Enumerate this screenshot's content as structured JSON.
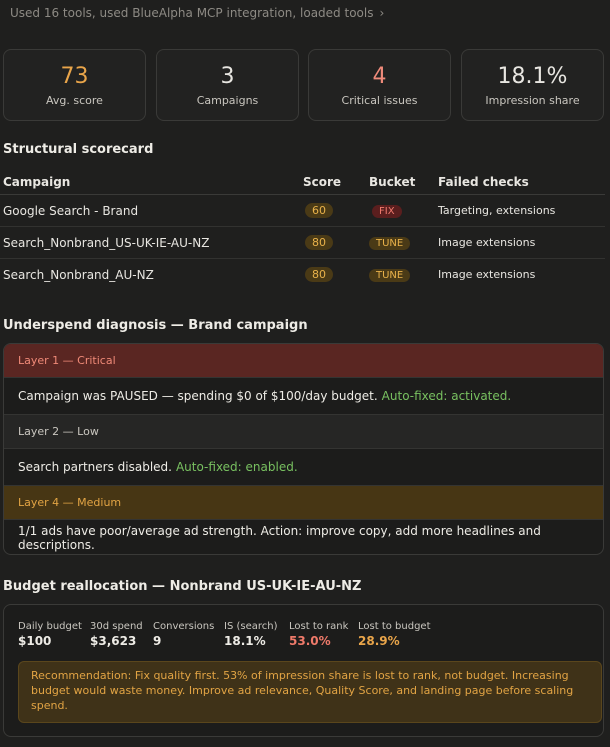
{
  "tools_summary": "Used 16 tools, used BlueAlpha MCP integration, loaded tools",
  "stats": [
    {
      "value": "73",
      "label": "Avg. score",
      "color": "#e9a54a"
    },
    {
      "value": "3",
      "label": "Campaigns",
      "color": "#f2f0ea"
    },
    {
      "value": "4",
      "label": "Critical issues",
      "color": "#ef8a7a"
    },
    {
      "value": "18.1%",
      "label": "Impression share",
      "color": "#f2f0ea"
    }
  ],
  "scorecard": {
    "title": "Structural scorecard",
    "headers": [
      "Campaign",
      "Score",
      "Bucket",
      "Failed checks"
    ],
    "rows": [
      {
        "campaign": "Google Search - Brand",
        "score": "60",
        "bucket": "FIX",
        "failed": "Targeting, extensions"
      },
      {
        "campaign": "Search_Nonbrand_US-UK-IE-AU-NZ",
        "score": "80",
        "bucket": "TUNE",
        "failed": "Image extensions"
      },
      {
        "campaign": "Search_Nonbrand_AU-NZ",
        "score": "80",
        "bucket": "TUNE",
        "failed": "Image extensions"
      }
    ]
  },
  "diagnosis": {
    "title": "Underspend diagnosis — Brand campaign",
    "layers": [
      {
        "head": "Layer 1 — Critical",
        "body": "Campaign was PAUSED — spending $0 of $100/day budget.",
        "fix": "Auto-fixed: activated."
      },
      {
        "head": "Layer 2 — Low",
        "body": "Search partners disabled.",
        "fix": "Auto-fixed: enabled."
      },
      {
        "head": "Layer 4 — Medium",
        "body": "1/1 ads have poor/average ad strength. Action: improve copy, add more headlines and descriptions.",
        "fix": ""
      }
    ]
  },
  "budget": {
    "title": "Budget reallocation — Nonbrand US-UK-IE-AU-NZ",
    "metrics": [
      {
        "label": "Daily budget",
        "value": "$100"
      },
      {
        "label": "30d spend",
        "value": "$3,623"
      },
      {
        "label": "Conversions",
        "value": "9"
      },
      {
        "label": "IS (search)",
        "value": "18.1%"
      },
      {
        "label": "Lost to rank",
        "value": "53.0%"
      },
      {
        "label": "Lost to budget",
        "value": "28.9%"
      }
    ],
    "recommendation": "Recommendation: Fix quality first. 53% of impression share is lost to rank, not budget. Increasing budget would waste money. Improve ad relevance, Quality Score, and landing page before scaling spend."
  }
}
